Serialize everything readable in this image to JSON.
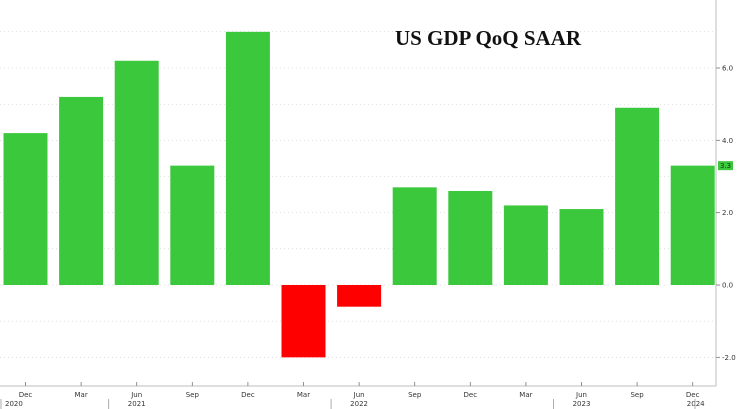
{
  "chart_data": {
    "type": "bar",
    "title": "US GDP QoQ SAAR",
    "xlabel": "",
    "ylabel": "",
    "ylim": [
      -2.4,
      7.6
    ],
    "y_ticks": [
      6.0,
      4.0,
      2.0,
      0.0,
      -2.0
    ],
    "y_tick_labels": [
      "6.0",
      "4.0",
      "2.0",
      "0.0",
      "-2.0"
    ],
    "grid": true,
    "categories": [
      "Dec",
      "Mar",
      "Jun",
      "Sep",
      "Dec",
      "Mar",
      "Jun",
      "Sep",
      "Dec",
      "Mar",
      "Jun",
      "Sep",
      "Dec"
    ],
    "values": [
      4.2,
      5.2,
      6.2,
      3.3,
      7.0,
      -2.0,
      -0.6,
      2.7,
      2.6,
      2.2,
      2.1,
      4.9,
      3.3
    ],
    "x_tick_labels": [
      "Dec",
      "Mar",
      "Jun",
      "Sep",
      "Dec",
      "Mar",
      "Jun",
      "Sep",
      "Dec",
      "Mar",
      "Jun",
      "Sep",
      "Dec"
    ],
    "year_labels": [
      {
        "label": "2020",
        "index": 0
      },
      {
        "label": "2021",
        "index": 2
      },
      {
        "label": "2022",
        "index": 6
      },
      {
        "label": "2023",
        "index": 10
      },
      {
        "label": "2024",
        "index": 12
      }
    ],
    "last_value_label": "3.3",
    "colors": {
      "positive": "#3cc83c",
      "negative": "#ff0000",
      "grid": "#c8c8c8",
      "last_value_bg": "#3cc83c"
    }
  }
}
